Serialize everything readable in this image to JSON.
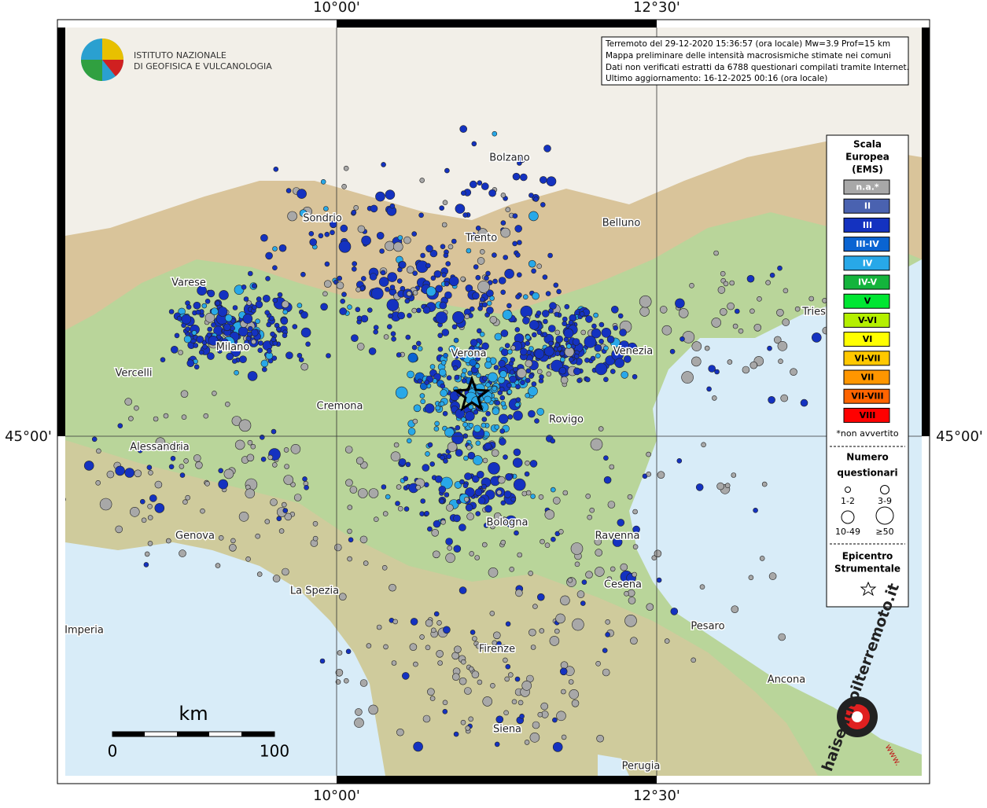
{
  "grid_labels": {
    "lon": [
      "10°00'",
      "12°30'"
    ],
    "lat": [
      "45°00'"
    ]
  },
  "logo": {
    "line1": "ISTITUTO NAZIONALE",
    "line2": "DI GEOFISICA E VULCANOLOGIA"
  },
  "info": [
    "Terremoto del 29-12-2020 15:36:57 (ora locale) Mw=3.9 Prof=15 km",
    "Mappa preliminare delle intensità macrosismiche stimate nei comuni",
    "Dati non verificati estratti da 6788 questionari compilati tramite Internet.",
    "Ultimo aggiornamento: 16-12-2025 00:16 (ora locale)"
  ],
  "cities": [
    "Bolzano",
    "Sondrio",
    "Trento",
    "Belluno",
    "Varese",
    "Tries",
    "Milano",
    "Verona",
    "Venezia",
    "Vercelli",
    "Cremona",
    "Rovigo",
    "Alessandria",
    "Genova",
    "Bologna",
    "Ravenna",
    "La Spezia",
    "Cesena",
    "Imperia",
    "Pesaro",
    "Firenze",
    "Ancona",
    "Siena",
    "Perugia"
  ],
  "legend": {
    "title": [
      "Scala",
      "Europea",
      "(EMS)"
    ],
    "classes": [
      {
        "label": "n.a.*",
        "color": "#a8a8a8"
      },
      {
        "label": "II",
        "color": "#4a62b0"
      },
      {
        "label": "III",
        "color": "#1432c0"
      },
      {
        "label": "III-IV",
        "color": "#0a64d2"
      },
      {
        "label": "IV",
        "color": "#28a8e8"
      },
      {
        "label": "IV-V",
        "color": "#14b43c"
      },
      {
        "label": "V",
        "color": "#00e632"
      },
      {
        "label": "V-VI",
        "color": "#b4f000"
      },
      {
        "label": "VI",
        "color": "#ffff00"
      },
      {
        "label": "VI-VII",
        "color": "#ffc800"
      },
      {
        "label": "VII",
        "color": "#ff9600"
      },
      {
        "label": "VII-VIII",
        "color": "#ff6400"
      },
      {
        "label": "VIII",
        "color": "#ff0000"
      }
    ],
    "note": "*non avvertito",
    "size_title": [
      "Numero",
      "questionari"
    ],
    "sizes": [
      "1-2",
      "3-9",
      "10-49",
      "≥50"
    ],
    "epicenter_title": [
      "Epicentro",
      "Strumentale"
    ]
  },
  "scale_bar": {
    "unit": "km",
    "labels": [
      "0",
      "100"
    ]
  },
  "watermark": "haisentitoilterremoto.it",
  "watermark_url": "www."
}
